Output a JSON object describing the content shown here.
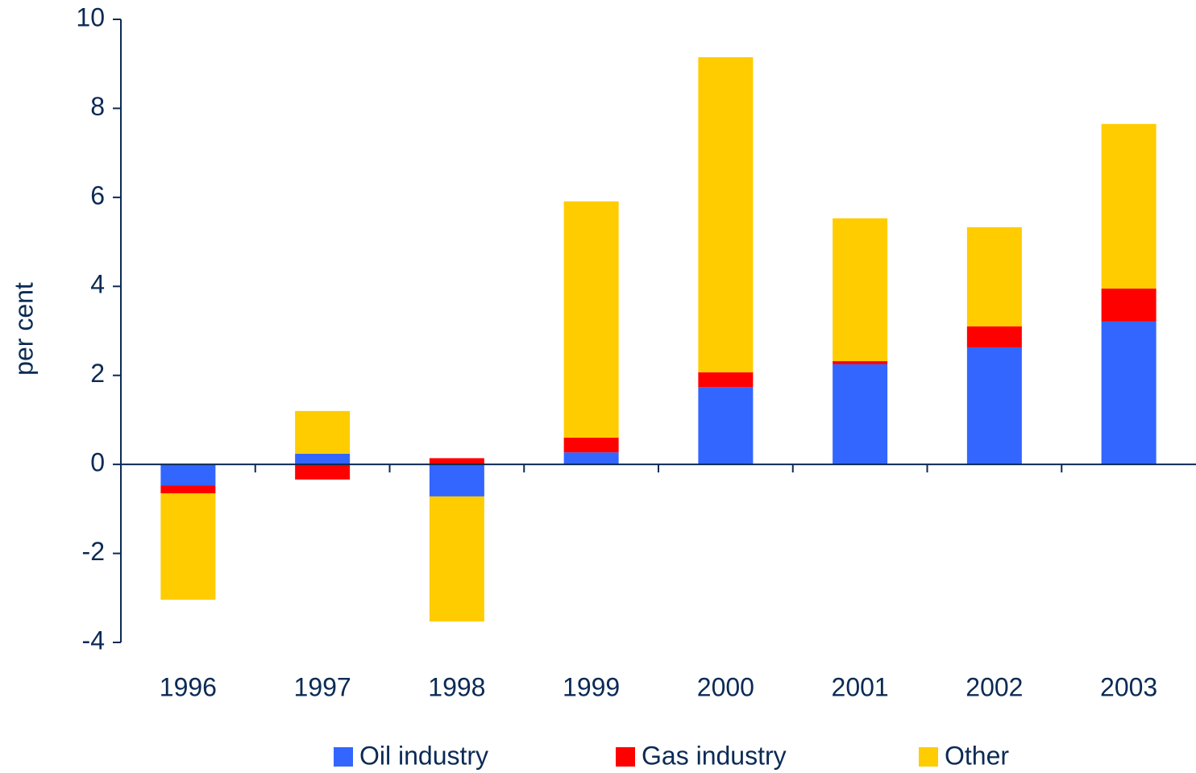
{
  "chart_data": {
    "type": "stacked_bar",
    "y_label": "per cent",
    "categories": [
      "1996",
      "1997",
      "1998",
      "1999",
      "2000",
      "2001",
      "2002",
      "2003"
    ],
    "series": [
      {
        "name": "Oil industry",
        "color": "#3366ff",
        "values": [
          -0.47,
          0.24,
          -0.72,
          0.27,
          1.74,
          2.25,
          2.63,
          3.21
        ]
      },
      {
        "name": "Gas industry",
        "color": "#ff0000",
        "values": [
          -0.18,
          -0.34,
          0.14,
          0.33,
          0.33,
          0.07,
          0.47,
          0.74
        ]
      },
      {
        "name": "Other",
        "color": "#ffcc00",
        "values": [
          -2.39,
          0.96,
          -2.81,
          5.31,
          7.08,
          3.21,
          2.23,
          3.7
        ]
      }
    ],
    "ylim": [
      -4,
      10
    ],
    "yticks": [
      -4,
      -2,
      0,
      2,
      4,
      6,
      8,
      10
    ],
    "legend": "bottom"
  }
}
